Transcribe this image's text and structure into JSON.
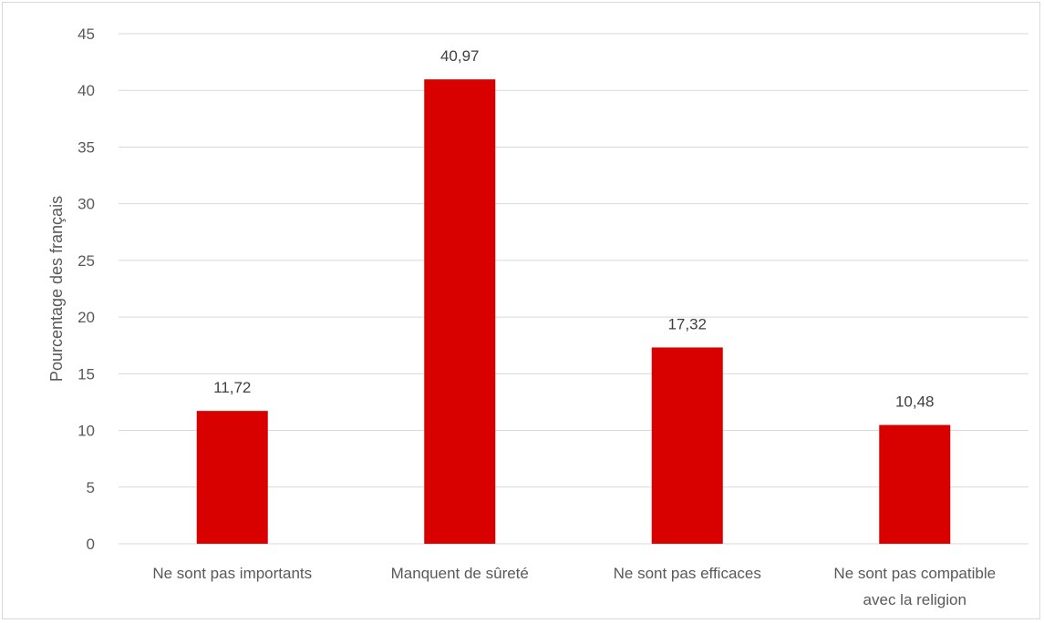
{
  "chart_data": {
    "type": "bar",
    "title": "",
    "xlabel": "",
    "ylabel": "Pourcentage des français",
    "categories": [
      [
        "Ne sont pas importants"
      ],
      [
        "Manquent de sûreté"
      ],
      [
        "Ne sont pas efficaces"
      ],
      [
        "Ne sont pas compatible",
        "avec la religion"
      ]
    ],
    "values": [
      11.72,
      40.97,
      17.32,
      10.48
    ],
    "value_labels": [
      "11,72",
      "40,97",
      "17,32",
      "10,48"
    ],
    "ylim": [
      0,
      45
    ],
    "yticks": [
      0,
      5,
      10,
      15,
      20,
      25,
      30,
      35,
      40,
      45
    ],
    "grid": true,
    "legend": "none",
    "bar_color": "#d90000",
    "grid_color": "#d9d9d9"
  }
}
